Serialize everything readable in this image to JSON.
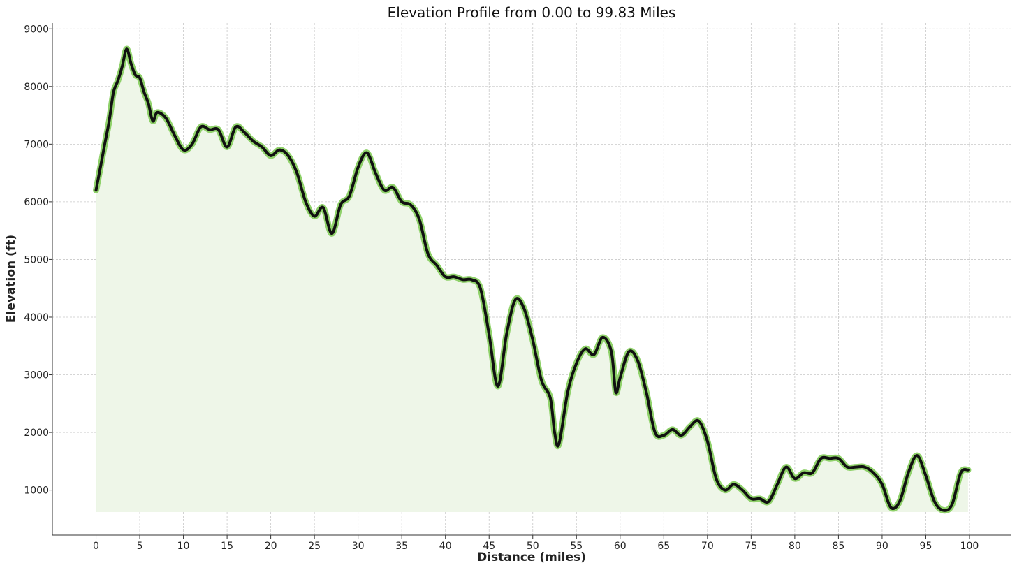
{
  "chart_data": {
    "type": "area",
    "title": "Elevation Profile from 0.00 to 99.83 Miles",
    "xlabel": "Distance (miles)",
    "ylabel": "Elevation (ft)",
    "xlim": [
      -5,
      104.8
    ],
    "ylim": [
      220,
      9100
    ],
    "x_ticks": [
      "0",
      "5",
      "10",
      "15",
      "20",
      "25",
      "30",
      "35",
      "40",
      "45",
      "50",
      "55",
      "60",
      "65",
      "70",
      "75",
      "80",
      "85",
      "90",
      "95",
      "100"
    ],
    "y_ticks": [
      "1000",
      "2000",
      "3000",
      "4000",
      "5000",
      "6000",
      "7000",
      "8000",
      "9000"
    ],
    "grid": true,
    "fill_baseline": 620,
    "colors": {
      "line": "#111111",
      "halo": "#8fd16a",
      "fill": "#eef6e8"
    },
    "series": [
      {
        "x": [
          0,
          0.5,
          1,
          1.5,
          2,
          2.5,
          3,
          3.5,
          4,
          4.5,
          5,
          5.5,
          6,
          6.5,
          7,
          8,
          9,
          10,
          11,
          12,
          13,
          14,
          15,
          16,
          17,
          18,
          19,
          20,
          21,
          22,
          23,
          24,
          25,
          26,
          27,
          28,
          29,
          30,
          31,
          32,
          33,
          34,
          35,
          36,
          37,
          38,
          39,
          40,
          41,
          42,
          43,
          44,
          45,
          46,
          47,
          48,
          49,
          50,
          51,
          52,
          52.5,
          53,
          54,
          55,
          56,
          57,
          58,
          59,
          59.5,
          60,
          61,
          62,
          63,
          64,
          65,
          66,
          67,
          68,
          69,
          70,
          71,
          72,
          73,
          74,
          75,
          76,
          77,
          78,
          79,
          80,
          81,
          82,
          83,
          84,
          85,
          86,
          87,
          88,
          89,
          90,
          91,
          92,
          93,
          94,
          95,
          96,
          97,
          98,
          99,
          99.83
        ],
        "y": [
          6200,
          6600,
          7000,
          7400,
          7900,
          8100,
          8350,
          8650,
          8400,
          8200,
          8150,
          7900,
          7700,
          7400,
          7550,
          7450,
          7150,
          6900,
          7000,
          7300,
          7250,
          7250,
          6950,
          7300,
          7200,
          7050,
          6950,
          6800,
          6900,
          6800,
          6500,
          6000,
          5750,
          5900,
          5450,
          5950,
          6100,
          6600,
          6850,
          6500,
          6200,
          6250,
          6000,
          5950,
          5700,
          5100,
          4900,
          4700,
          4700,
          4650,
          4650,
          4500,
          3700,
          2800,
          3700,
          4300,
          4150,
          3600,
          2900,
          2600,
          2000,
          1800,
          2700,
          3200,
          3450,
          3350,
          3650,
          3400,
          2700,
          2950,
          3400,
          3250,
          2700,
          2000,
          1950,
          2050,
          1950,
          2100,
          2200,
          1850,
          1200,
          1000,
          1100,
          1000,
          850,
          850,
          800,
          1100,
          1400,
          1200,
          1300,
          1300,
          1550,
          1550,
          1550,
          1400,
          1400,
          1400,
          1300,
          1100,
          700,
          800,
          1300,
          1600,
          1250,
          800,
          650,
          750,
          1300,
          1350
        ]
      }
    ]
  }
}
